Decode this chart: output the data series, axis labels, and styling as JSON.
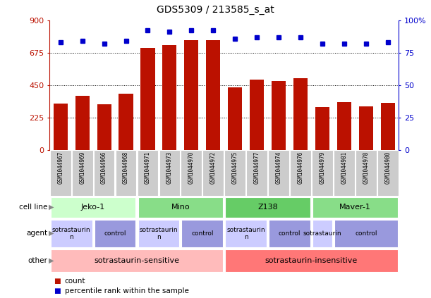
{
  "title": "GDS5309 / 213585_s_at",
  "samples": [
    "GSM1044967",
    "GSM1044969",
    "GSM1044966",
    "GSM1044968",
    "GSM1044971",
    "GSM1044973",
    "GSM1044970",
    "GSM1044972",
    "GSM1044975",
    "GSM1044977",
    "GSM1044974",
    "GSM1044976",
    "GSM1044979",
    "GSM1044981",
    "GSM1044978",
    "GSM1044980"
  ],
  "counts": [
    320,
    375,
    315,
    390,
    710,
    730,
    760,
    760,
    435,
    490,
    480,
    500,
    295,
    330,
    300,
    325
  ],
  "percentiles": [
    83,
    84,
    82,
    84,
    92,
    91,
    92,
    92,
    86,
    87,
    87,
    87,
    82,
    82,
    82,
    83
  ],
  "ylim_left": [
    0,
    900
  ],
  "ylim_right": [
    0,
    100
  ],
  "yticks_left": [
    0,
    225,
    450,
    675,
    900
  ],
  "yticks_right": [
    0,
    25,
    50,
    75,
    100
  ],
  "bar_color": "#bb1100",
  "dot_color": "#0000cc",
  "bg_color": "#ffffff",
  "sample_box_color": "#cccccc",
  "cell_line_row": {
    "label": "cell line",
    "groups": [
      {
        "name": "Jeko-1",
        "start": 0,
        "end": 4,
        "color": "#ccffcc"
      },
      {
        "name": "Mino",
        "start": 4,
        "end": 8,
        "color": "#88dd88"
      },
      {
        "name": "Z138",
        "start": 8,
        "end": 12,
        "color": "#66cc66"
      },
      {
        "name": "Maver-1",
        "start": 12,
        "end": 16,
        "color": "#88dd88"
      }
    ]
  },
  "agent_row": {
    "label": "agent",
    "groups": [
      {
        "name": "sotrastaurin\nn",
        "start": 0,
        "end": 2,
        "color": "#ccccff"
      },
      {
        "name": "control",
        "start": 2,
        "end": 4,
        "color": "#9999dd"
      },
      {
        "name": "sotrastaurin\nn",
        "start": 4,
        "end": 6,
        "color": "#ccccff"
      },
      {
        "name": "control",
        "start": 6,
        "end": 8,
        "color": "#9999dd"
      },
      {
        "name": "sotrastaurin\nn",
        "start": 8,
        "end": 10,
        "color": "#ccccff"
      },
      {
        "name": "control",
        "start": 10,
        "end": 12,
        "color": "#9999dd"
      },
      {
        "name": "sotrastaurin",
        "start": 12,
        "end": 13,
        "color": "#ccccff"
      },
      {
        "name": "control",
        "start": 13,
        "end": 16,
        "color": "#9999dd"
      }
    ]
  },
  "other_row": {
    "label": "other",
    "groups": [
      {
        "name": "sotrastaurin-sensitive",
        "start": 0,
        "end": 8,
        "color": "#ffbbbb"
      },
      {
        "name": "sotrastaurin-insensitive",
        "start": 8,
        "end": 16,
        "color": "#ff7777"
      }
    ]
  }
}
